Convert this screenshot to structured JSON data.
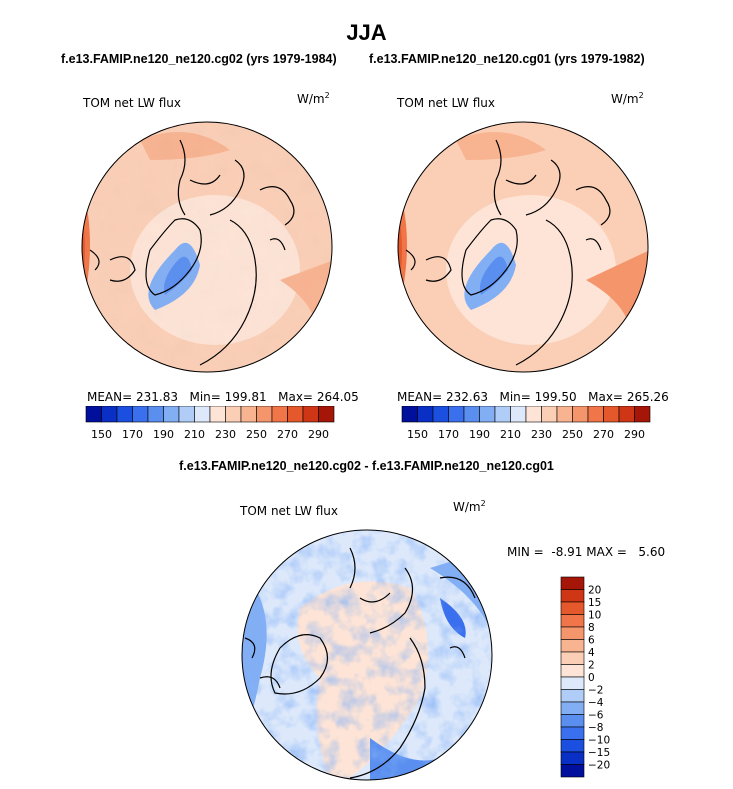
{
  "page": {
    "title": "JJA"
  },
  "colors": {
    "blues": [
      "#000f9c",
      "#0a2fc4",
      "#1a4fe0",
      "#3a6fee",
      "#5a8ff0",
      "#82aef4",
      "#b0cdf7",
      "#dde9fb"
    ],
    "reds": [
      "#fde4d6",
      "#fbcfb6",
      "#f8b391",
      "#f5956c",
      "#f07649",
      "#e5582c",
      "#cf3616",
      "#a51608",
      "#7a0000"
    ]
  },
  "chart_data": [
    {
      "type": "polar-contour-map",
      "subtitle": "f.e13.FAMIP.ne120_ne120.cg02 (yrs 1979-1984)",
      "variable": "TOM net LW flux",
      "units": "W/m",
      "units_exp": "2",
      "stats": [
        {
          "label": "MEAN=",
          "value": "231.83"
        },
        {
          "label": "Min=",
          "value": "199.81"
        },
        {
          "label": "Max=",
          "value": "264.05"
        }
      ],
      "colorbar": {
        "levels": [
          150,
          160,
          170,
          180,
          190,
          200,
          210,
          220,
          230,
          240,
          250,
          260,
          270,
          280,
          290
        ],
        "tick_labels": [
          "150",
          "170",
          "190",
          "210",
          "230",
          "250",
          "270",
          "290"
        ]
      }
    },
    {
      "type": "polar-contour-map",
      "subtitle": "f.e13.FAMIP.ne120_ne120.cg01 (yrs 1979-1982)",
      "variable": "TOM net LW flux",
      "units": "W/m",
      "units_exp": "2",
      "stats": [
        {
          "label": "MEAN=",
          "value": "232.63"
        },
        {
          "label": "Min=",
          "value": "199.50"
        },
        {
          "label": "Max=",
          "value": "265.26"
        }
      ],
      "colorbar": {
        "levels": [
          150,
          160,
          170,
          180,
          190,
          200,
          210,
          220,
          230,
          240,
          250,
          260,
          270,
          280,
          290
        ],
        "tick_labels": [
          "150",
          "170",
          "190",
          "210",
          "230",
          "250",
          "270",
          "290"
        ]
      }
    },
    {
      "type": "polar-contour-map",
      "subtitle": "f.e13.FAMIP.ne120_ne120.cg02 - f.e13.FAMIP.ne120_ne120.cg01",
      "variable": "TOM net LW flux",
      "units": "W/m",
      "units_exp": "2",
      "min_label": "MIN =",
      "min_value": "-8.91",
      "max_label": "MAX =",
      "max_value": "5.60",
      "colorbar": {
        "levels": [
          20,
          15,
          10,
          8,
          6,
          4,
          2,
          0,
          -2,
          -4,
          -6,
          -8,
          -10,
          -15,
          -20
        ],
        "tick_labels": [
          "20",
          "15",
          "10",
          "8",
          "6",
          "4",
          "2",
          "0",
          "−2",
          "−4",
          "−6",
          "−8",
          "−10",
          "−15",
          "−20"
        ]
      }
    }
  ]
}
